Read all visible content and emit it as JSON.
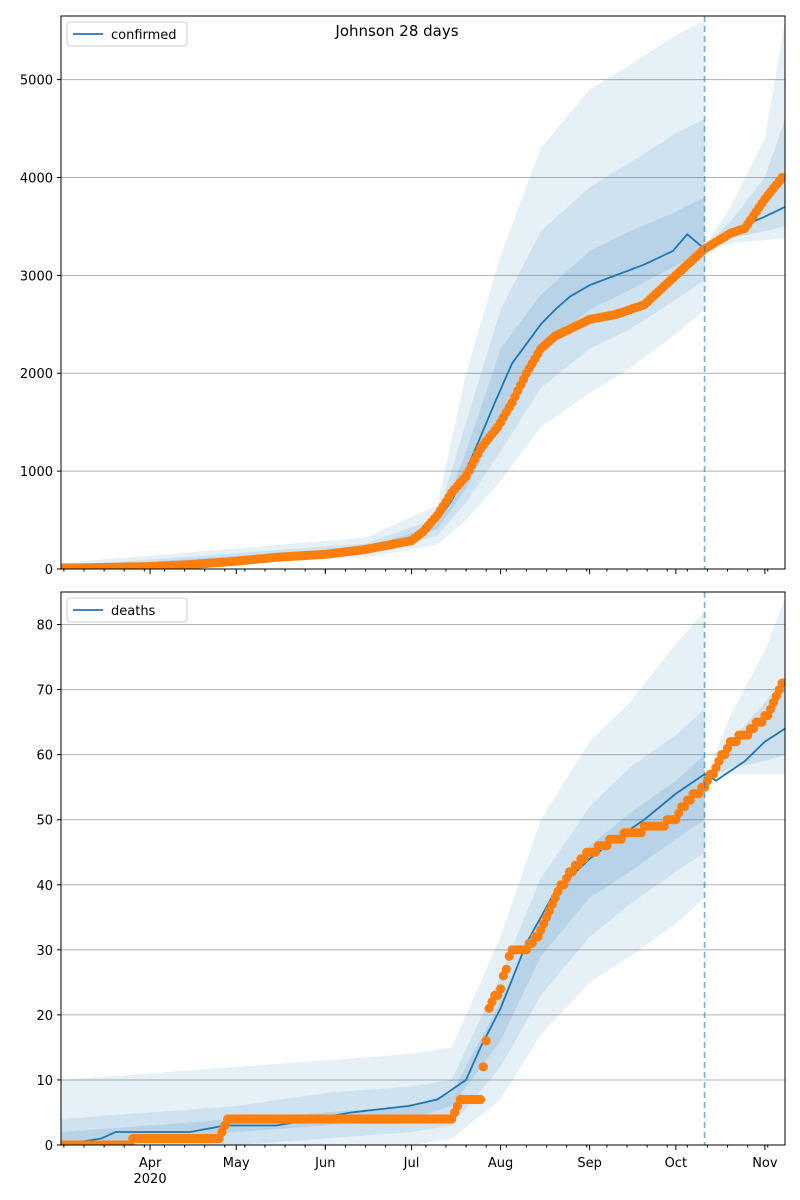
{
  "title": "Johnson 28 days",
  "colors": {
    "model": "#1f77b4",
    "observed": "#ff7f0e",
    "band": "#1f77b4",
    "grid": "#b0b0b0",
    "forecast_line": "#1f77b4"
  },
  "x_axis": {
    "tick_labels": [
      "Apr",
      "May",
      "Jun",
      "Jul",
      "Aug",
      "Sep",
      "Oct",
      "Nov"
    ],
    "year_label": "2020"
  },
  "chart_data": [
    {
      "type": "line",
      "name": "confirmed",
      "legend": [
        "confirmed"
      ],
      "legend_position": "upper-left",
      "grid": true,
      "ylim": [
        0,
        5650
      ],
      "yticks": [
        "0",
        "1000",
        "2000",
        "3000",
        "4000",
        "5000"
      ],
      "forecast_start": "Oct 11",
      "model_series": {
        "name": "confirmed",
        "x": [
          "Mar 1",
          "Mar 15",
          "Apr 1",
          "Apr 15",
          "May 1",
          "May 15",
          "Jun 1",
          "Jun 15",
          "Jul 1",
          "Jul 10",
          "Jul 15",
          "Jul 20",
          "Jul 25",
          "Jul 30",
          "Aug 5",
          "Aug 10",
          "Aug 15",
          "Aug 20",
          "Aug 25",
          "Sep 1",
          "Sep 10",
          "Sep 20",
          "Sep 30",
          "Oct 5",
          "Oct 11",
          "Oct 20",
          "Nov 1",
          "Nov 8"
        ],
        "values": [
          0,
          5,
          20,
          50,
          75,
          110,
          160,
          200,
          300,
          500,
          700,
          1000,
          1350,
          1700,
          2100,
          2300,
          2500,
          2650,
          2780,
          2900,
          3000,
          3110,
          3250,
          3420,
          3270,
          3450,
          3600,
          3700
        ]
      },
      "observed_series": {
        "x": [
          "Mar 1",
          "Mar 15",
          "Apr 1",
          "Apr 15",
          "May 1",
          "May 15",
          "Jun 1",
          "Jun 15",
          "Jul 1",
          "Jul 5",
          "Jul 10",
          "Jul 15",
          "Jul 20",
          "Jul 25",
          "Jul 31",
          "Aug 5",
          "Aug 10",
          "Aug 15",
          "Aug 20",
          "Aug 25",
          "Sep 1",
          "Sep 10",
          "Sep 20",
          "Oct 1",
          "Oct 11",
          "Oct 20",
          "Oct 25",
          "Nov 1",
          "Nov 7"
        ],
        "values": [
          10,
          15,
          25,
          45,
          80,
          120,
          150,
          200,
          290,
          380,
          550,
          780,
          950,
          1230,
          1450,
          1700,
          2000,
          2250,
          2380,
          2450,
          2550,
          2600,
          2700,
          3000,
          3270,
          3430,
          3480,
          3780,
          4000
        ]
      },
      "band_outer": {
        "x": [
          "Mar 1",
          "Jun 15",
          "Jul 10",
          "Jul 20",
          "Aug 1",
          "Aug 15",
          "Sep 1",
          "Sep 15",
          "Oct 1",
          "Oct 11"
        ],
        "low": [
          0,
          120,
          250,
          500,
          900,
          1450,
          1800,
          2050,
          2400,
          2650
        ],
        "high": [
          60,
          320,
          650,
          2000,
          3200,
          4300,
          4900,
          5150,
          5450,
          5600
        ]
      },
      "band_mid": {
        "x": [
          "Mar 1",
          "Jun 15",
          "Jul 10",
          "Jul 20",
          "Aug 1",
          "Aug 15",
          "Sep 1",
          "Sep 15",
          "Oct 1",
          "Oct 11"
        ],
        "low": [
          0,
          150,
          340,
          680,
          1200,
          1850,
          2250,
          2450,
          2750,
          2950
        ],
        "high": [
          30,
          260,
          520,
          1500,
          2650,
          3450,
          3900,
          4150,
          4450,
          4600
        ]
      },
      "band_inner": {
        "x": [
          "Mar 1",
          "Jun 15",
          "Jul 10",
          "Jul 20",
          "Aug 1",
          "Aug 15",
          "Sep 1",
          "Sep 15",
          "Oct 1",
          "Oct 11"
        ],
        "low": [
          0,
          175,
          410,
          820,
          1500,
          2250,
          2650,
          2850,
          3100,
          3250
        ],
        "high": [
          15,
          220,
          450,
          1200,
          2250,
          2800,
          3250,
          3450,
          3650,
          3800
        ]
      },
      "forecast_band_outer": {
        "x": [
          "Oct 11",
          "Oct 20",
          "Nov 1",
          "Nov 8"
        ],
        "low": [
          3280,
          3330,
          3360,
          3380
        ],
        "high": [
          3290,
          3700,
          4400,
          5600
        ]
      },
      "forecast_band_inner": {
        "x": [
          "Oct 11",
          "Oct 20",
          "Nov 1",
          "Nov 8"
        ],
        "low": [
          3280,
          3380,
          3450,
          3500
        ],
        "high": [
          3285,
          3550,
          4000,
          4600
        ]
      }
    },
    {
      "type": "line",
      "name": "deaths",
      "legend": [
        "deaths"
      ],
      "legend_position": "upper-left",
      "grid": true,
      "ylim": [
        0,
        85
      ],
      "yticks": [
        "0",
        "10",
        "20",
        "30",
        "40",
        "50",
        "60",
        "70",
        "80"
      ],
      "forecast_start": "Oct 11",
      "model_series": {
        "name": "deaths",
        "x": [
          "Mar 1",
          "Mar 15",
          "Mar 20",
          "Apr 15",
          "Apr 27",
          "May 15",
          "Jun 10",
          "Jun 30",
          "Jul 10",
          "Jul 20",
          "Jul 25",
          "Aug 1",
          "Aug 10",
          "Aug 20",
          "Sep 1",
          "Sep 10",
          "Sep 20",
          "Oct 1",
          "Oct 11",
          "Oct 15",
          "Oct 25",
          "Nov 1",
          "Nov 8"
        ],
        "values": [
          0,
          1,
          2,
          2,
          3,
          3,
          5,
          6,
          7,
          10,
          15,
          21,
          31,
          39,
          44,
          47,
          50,
          54,
          57,
          56,
          59,
          62,
          64
        ]
      },
      "observed_series": {
        "x": [
          "Mar 1",
          "Mar 20",
          "Apr 1",
          "Apr 25",
          "Apr 28",
          "May 15",
          "Jun 15",
          "Jul 15",
          "Jul 18",
          "Jul 25",
          "Jul 28",
          "Aug 1",
          "Aug 5",
          "Aug 10",
          "Aug 15",
          "Aug 20",
          "Aug 25",
          "Sep 1",
          "Sep 15",
          "Sep 25",
          "Oct 1",
          "Oct 5",
          "Oct 11",
          "Oct 15",
          "Oct 20",
          "Oct 25",
          "Oct 30",
          "Nov 2",
          "Nov 7"
        ],
        "values": [
          0,
          0,
          1,
          1,
          4,
          4,
          4,
          4,
          7,
          7,
          21,
          24,
          30,
          30,
          33,
          38,
          42,
          45,
          48,
          49,
          50,
          53,
          55,
          58,
          62,
          63,
          65,
          66,
          71
        ]
      },
      "band_outer": {
        "x": [
          "Mar 1",
          "Apr 1",
          "May 1",
          "Jun 1",
          "Jul 1",
          "Jul 15",
          "Aug 1",
          "Aug 15",
          "Sep 1",
          "Sep 15",
          "Oct 1",
          "Oct 11"
        ],
        "low": [
          0,
          0,
          0,
          0,
          0,
          1,
          7,
          17,
          25,
          29,
          34,
          38
        ],
        "high": [
          10,
          11,
          12,
          13,
          14,
          15,
          32,
          50,
          62,
          68,
          77,
          82
        ]
      },
      "band_mid": {
        "x": [
          "Mar 1",
          "Apr 1",
          "May 1",
          "Jun 1",
          "Jul 1",
          "Jul 15",
          "Aug 1",
          "Aug 15",
          "Sep 1",
          "Sep 15",
          "Oct 1",
          "Oct 11"
        ],
        "low": [
          0,
          0,
          0,
          1,
          2,
          3,
          12,
          23,
          32,
          37,
          42,
          45
        ],
        "high": [
          4,
          5,
          6,
          8,
          9,
          10,
          26,
          41,
          52,
          58,
          63,
          67
        ]
      },
      "band_inner": {
        "x": [
          "Mar 1",
          "Apr 1",
          "May 1",
          "Jun 1",
          "Jul 1",
          "Jul 15",
          "Aug 1",
          "Aug 15",
          "Sep 1",
          "Sep 15",
          "Oct 1",
          "Oct 11"
        ],
        "low": [
          0,
          1,
          2,
          3,
          4,
          6,
          16,
          29,
          38,
          42,
          47,
          50
        ],
        "high": [
          2,
          3,
          4,
          5,
          6,
          8,
          22,
          35,
          46,
          51,
          56,
          60
        ]
      },
      "forecast_band_outer": {
        "x": [
          "Oct 11",
          "Oct 20",
          "Nov 1",
          "Nov 8"
        ],
        "low": [
          56,
          57,
          57,
          57
        ],
        "high": [
          56,
          66,
          76,
          84
        ]
      },
      "forecast_band_inner": {
        "x": [
          "Oct 11",
          "Oct 20",
          "Nov 1",
          "Nov 8"
        ],
        "low": [
          56,
          58,
          59,
          60
        ],
        "high": [
          56,
          62,
          68,
          72
        ]
      }
    }
  ]
}
